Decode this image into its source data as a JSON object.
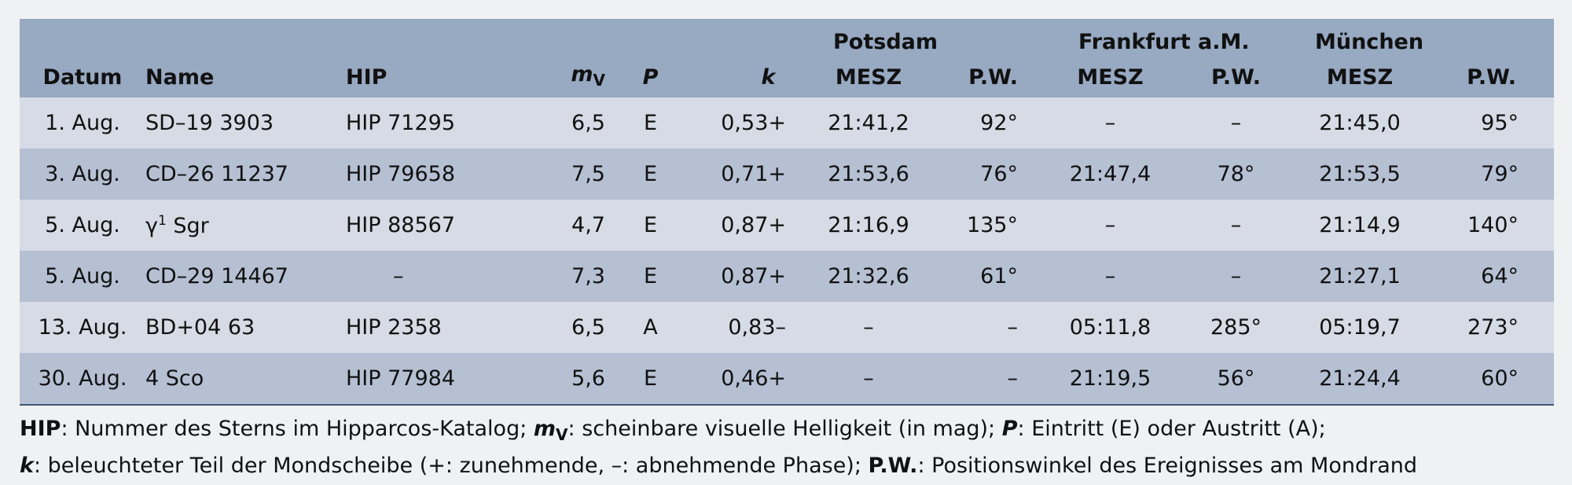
{
  "headers": {
    "datum": "Datum",
    "name": "Name",
    "hip": "HIP",
    "mv_main": "m",
    "mv_sub": "V",
    "p": "P",
    "k": "k",
    "potsdam": "Potsdam",
    "frankfurt": "Frankfurt a.M.",
    "muenchen": "München",
    "mesz": "MESZ",
    "pw": "P.W."
  },
  "rows": [
    {
      "datum": "1. Aug.",
      "name": "SD–19 3903",
      "hip": "HIP 71295",
      "mv": "6,5",
      "p": "E",
      "k": "0,53+",
      "pot_mesz": "21:41,2",
      "pot_pw": "92°",
      "fra_mesz": "–",
      "fra_pw": "–",
      "mue_mesz": "21:45,0",
      "mue_pw": "95°"
    },
    {
      "datum": "3. Aug.",
      "name": "CD–26 11237",
      "hip": "HIP 79658",
      "mv": "7,5",
      "p": "E",
      "k": "0,71+",
      "pot_mesz": "21:53,6",
      "pot_pw": "76°",
      "fra_mesz": "21:47,4",
      "fra_pw": "78°",
      "mue_mesz": "21:53,5",
      "mue_pw": "79°"
    },
    {
      "datum": "5. Aug.",
      "name_base": "γ",
      "name_sup": "1",
      "name_rest": " Sgr",
      "hip": "HIP 88567",
      "mv": "4,7",
      "p": "E",
      "k": "0,87+",
      "pot_mesz": "21:16,9",
      "pot_pw": "135°",
      "fra_mesz": "–",
      "fra_pw": "–",
      "mue_mesz": "21:14,9",
      "mue_pw": "140°"
    },
    {
      "datum": "5. Aug.",
      "name": "CD–29 14467",
      "hip": "–",
      "mv": "7,3",
      "p": "E",
      "k": "0,87+",
      "pot_mesz": "21:32,6",
      "pot_pw": "61°",
      "fra_mesz": "–",
      "fra_pw": "–",
      "mue_mesz": "21:27,1",
      "mue_pw": "64°"
    },
    {
      "datum": "13. Aug.",
      "name": "BD+04 63",
      "hip": "HIP 2358",
      "mv": "6,5",
      "p": "A",
      "k": "0,83–",
      "pot_mesz": "–",
      "pot_pw": "–",
      "fra_mesz": "05:11,8",
      "fra_pw": "285°",
      "mue_mesz": "05:19,7",
      "mue_pw": "273°"
    },
    {
      "datum": "30. Aug.",
      "name": "4 Sco",
      "hip": "HIP 77984",
      "mv": "5,6",
      "p": "E",
      "k": "0,46+",
      "pot_mesz": "–",
      "pot_pw": "–",
      "fra_mesz": "21:19,5",
      "fra_pw": "56°",
      "mue_mesz": "21:24,4",
      "mue_pw": "60°"
    }
  ],
  "footnote": {
    "hip_term": "HIP",
    "hip_text": ": Nummer des Sterns im Hipparcos-Katalog; ",
    "mv_term": "m",
    "mv_sub": "V",
    "mv_text": ": scheinbare visuelle Helligkeit (in mag); ",
    "p_term": "P",
    "p_text": ": Eintritt (E) oder Austritt (A);",
    "k_term": "k",
    "k_text": ": beleuchteter Teil der Mondscheibe (+: zunehmende, –: abnehmende Phase); ",
    "pw_term": "P.W.",
    "pw_text": ": Positionswinkel des Ereignisses am Mondrand"
  },
  "colors": {
    "header_bg": "#98a9c2",
    "row_light": "#d6dbe5",
    "row_dark": "#b5c0d3",
    "rule": "#3c5777"
  }
}
